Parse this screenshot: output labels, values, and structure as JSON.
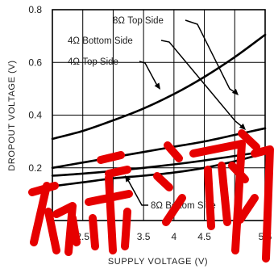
{
  "chart_data": {
    "type": "line",
    "title": "",
    "xlabel": "SUPPLY VOLTAGE (V)",
    "ylabel": "DROPOUT VOLTAGE (V)",
    "xlim": [
      2,
      5.5
    ],
    "ylim": [
      0,
      0.8
    ],
    "x_ticks": [
      "2",
      "2.5",
      "3",
      "3.5",
      "4",
      "4.5",
      "5",
      "5.5"
    ],
    "y_ticks": [
      "0",
      "0.2",
      "0.4",
      "0.6",
      "0.8"
    ],
    "grid": true,
    "x": [
      2,
      2.5,
      3,
      3.5,
      4,
      4.5,
      5,
      5.5
    ],
    "series": [
      {
        "name": "8Ω Top Side",
        "values": [
          0.31,
          0.34,
          0.38,
          0.425,
          0.48,
          0.545,
          0.62,
          0.705
        ]
      },
      {
        "name": "4Ω Bottom Side",
        "values": [
          0.2,
          0.22,
          0.24,
          0.26,
          0.28,
          0.3,
          0.325,
          0.35
        ]
      },
      {
        "name": "4Ω Top Side",
        "values": [
          0.17,
          0.178,
          0.188,
          0.2,
          0.213,
          0.228,
          0.245,
          0.262
        ]
      },
      {
        "name": "8Ω Bottom Side",
        "values": [
          0.13,
          0.145,
          0.16,
          0.17,
          0.182,
          0.2,
          0.225,
          0.255
        ]
      }
    ],
    "annotations": [
      "8Ω Top Side",
      "4Ω Bottom Side",
      "4Ω Top Side",
      "8Ω Bottom Side"
    ]
  },
  "watermark": {
    "color": "#e60000"
  }
}
